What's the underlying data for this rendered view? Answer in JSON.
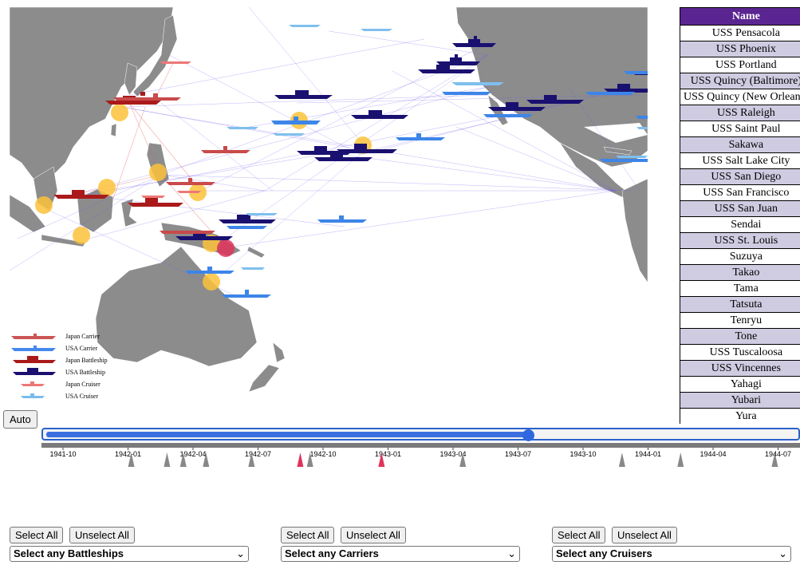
{
  "timeline": {
    "auto_label": "Auto",
    "progress": 0.64,
    "ticks": [
      "1941-10",
      "1942-01",
      "1942-04",
      "1942-07",
      "1942-10",
      "1943-01",
      "1943-04",
      "1943-07",
      "1943-10",
      "1944-01",
      "1944-04",
      "1944-07"
    ],
    "event_markers": [
      {
        "t": 1.05,
        "color": "#888888"
      },
      {
        "t": 1.6,
        "color": "#888888"
      },
      {
        "t": 1.85,
        "color": "#888888"
      },
      {
        "t": 2.2,
        "color": "#888888"
      },
      {
        "t": 2.9,
        "color": "#888888"
      },
      {
        "t": 3.65,
        "color": "#e0335a"
      },
      {
        "t": 3.8,
        "color": "#888888"
      },
      {
        "t": 4.9,
        "color": "#e0335a"
      },
      {
        "t": 6.15,
        "color": "#888888"
      },
      {
        "t": 8.6,
        "color": "#888888"
      },
      {
        "t": 9.5,
        "color": "#888888"
      },
      {
        "t": 10.95,
        "color": "#888888"
      }
    ]
  },
  "table": {
    "header": "Name",
    "rows": [
      "USS Pensacola",
      "USS Phoenix",
      "USS Portland",
      "USS Quincy (Baltimore)",
      "USS Quincy (New Orleans)",
      "USS Raleigh",
      "USS Saint Paul",
      "Sakawa",
      "USS Salt Lake City",
      "USS San Diego",
      "USS San Francisco",
      "USS San Juan",
      "Sendai",
      "USS St. Louis",
      "Suzuya",
      "Takao",
      "Tama",
      "Tatsuta",
      "Tenryu",
      "Tone",
      "USS Tuscaloosa",
      "USS Vincennes",
      "Yahagi",
      "Yubari",
      "Yura"
    ]
  },
  "legend": [
    {
      "label": "Japan Carrier",
      "color": "#cc5555",
      "kind": "carrier"
    },
    {
      "label": "USA Carrier",
      "color": "#4488ee",
      "kind": "carrier"
    },
    {
      "label": "Japan Battleship",
      "color": "#aa1a1a",
      "kind": "battleship"
    },
    {
      "label": "USA Battleship",
      "color": "#1a1070",
      "kind": "battleship"
    },
    {
      "label": "Japan Cruiser",
      "color": "#ee7777",
      "kind": "cruiser"
    },
    {
      "label": "USA Cruiser",
      "color": "#77bbee",
      "kind": "cruiser"
    }
  ],
  "filters": {
    "battleships": {
      "select_all": "Select All",
      "unselect_all": "Unselect All",
      "placeholder": "Select any Battleships"
    },
    "carriers": {
      "select_all": "Select All",
      "unselect_all": "Unselect All",
      "placeholder": "Select any Carriers"
    },
    "cruisers": {
      "select_all": "Select All",
      "unselect_all": "Unselect All",
      "placeholder": "Select any Cruisers"
    }
  }
}
